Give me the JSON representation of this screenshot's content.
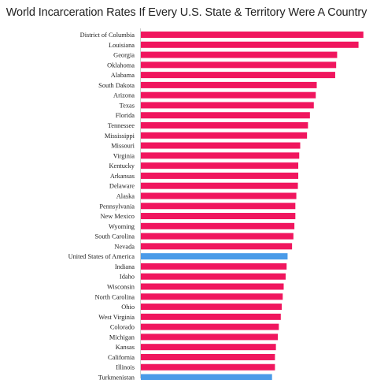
{
  "chart_data": {
    "type": "bar",
    "orientation": "horizontal",
    "title": "World Incarceration Rates If Every U.S. State & Territory Were A Country",
    "xlabel": "",
    "ylabel": "",
    "xlim": [
      0,
      1150
    ],
    "grid": false,
    "colors": {
      "state": "#f0165e",
      "country": "#4a9be8",
      "axis": "#cccccc"
    },
    "categories": [
      "District of Columbia",
      "Louisiana",
      "Georgia",
      "Oklahoma",
      "Alabama",
      "South Dakota",
      "Arizona",
      "Texas",
      "Florida",
      "Tennessee",
      "Mississippi",
      "Missouri",
      "Virginia",
      "Kentucky",
      "Arkansas",
      "Delaware",
      "Alaska",
      "Pennsylvania",
      "New Mexico",
      "Wyoming",
      "South Carolina",
      "Nevada",
      "United States of America",
      "Indiana",
      "Idaho",
      "Wisconsin",
      "North Carolina",
      "Ohio",
      "West Virginia",
      "Colorado",
      "Michigan",
      "Kansas",
      "California",
      "Illinois",
      "Turkmenistan"
    ],
    "values": [
      1145,
      1120,
      1010,
      1005,
      1000,
      905,
      900,
      890,
      870,
      860,
      855,
      820,
      815,
      810,
      810,
      808,
      800,
      795,
      795,
      790,
      785,
      778,
      755,
      750,
      745,
      735,
      730,
      725,
      720,
      710,
      705,
      695,
      690,
      690,
      675
    ],
    "highlight": [
      "United States of America",
      "Turkmenistan"
    ]
  }
}
